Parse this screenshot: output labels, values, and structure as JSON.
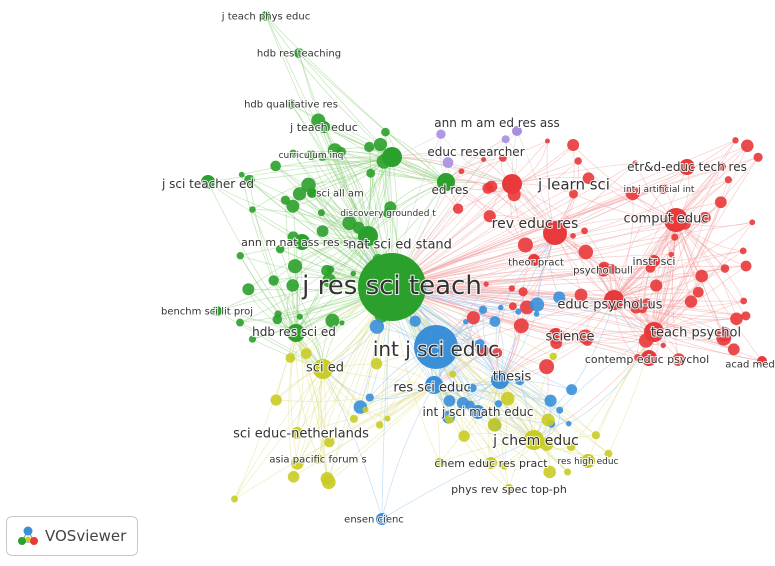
{
  "colors": {
    "green": "#2ca02c",
    "red": "#e8393b",
    "blue": "#3a8fd9",
    "yellow": "#c9cc24",
    "purple": "#a98ee0",
    "green_link": "#8fd17f",
    "red_link": "#f2a3a3",
    "blue_link": "#8fc2ee",
    "yellow_link": "#dede8a"
  },
  "brand": {
    "name": "VOSviewer",
    "icon": "vosviewer-logo-icon"
  },
  "nodes": [
    {
      "label": "j res sci teach",
      "cluster": "green"
    },
    {
      "label": "int j sci educ",
      "cluster": "blue"
    },
    {
      "label": "nat sci ed stand",
      "cluster": "green"
    },
    {
      "label": "j learn sci",
      "cluster": "red"
    },
    {
      "label": "rev educ res",
      "cluster": "red"
    },
    {
      "label": "comput educ",
      "cluster": "red"
    },
    {
      "label": "teach psychol",
      "cluster": "red"
    },
    {
      "label": "educ psychol-us",
      "cluster": "red"
    },
    {
      "label": "science",
      "cluster": "red"
    },
    {
      "label": "j chem educ",
      "cluster": "yellow"
    },
    {
      "label": "res sci educ",
      "cluster": "blue"
    },
    {
      "label": "int j sci math educ",
      "cluster": "blue"
    },
    {
      "label": "thesis",
      "cluster": "blue"
    },
    {
      "label": "sci ed",
      "cluster": "yellow"
    },
    {
      "label": "hdb res sci ed",
      "cluster": "green"
    },
    {
      "label": "ann m nat ass res sc",
      "cluster": "green"
    },
    {
      "label": "j sci teacher ed",
      "cluster": "green"
    },
    {
      "label": "educ researcher",
      "cluster": "green"
    },
    {
      "label": "ed res",
      "cluster": "green"
    },
    {
      "label": "ann m am ed res ass",
      "cluster": "purple"
    },
    {
      "label": "etr&d-educ tech res",
      "cluster": "red"
    },
    {
      "label": "int j artificial int",
      "cluster": "red"
    },
    {
      "label": "instr sci",
      "cluster": "red"
    },
    {
      "label": "psychol bull",
      "cluster": "red"
    },
    {
      "label": "theor pract",
      "cluster": "red"
    },
    {
      "label": "contemp educ psychol",
      "cluster": "red"
    },
    {
      "label": "acad med",
      "cluster": "red"
    },
    {
      "label": "sci educ-netherlands",
      "cluster": "yellow"
    },
    {
      "label": "chem educ res pract",
      "cluster": "yellow"
    },
    {
      "label": "res high educ",
      "cluster": "yellow"
    },
    {
      "label": "asia pacific forum s",
      "cluster": "yellow"
    },
    {
      "label": "phys rev spec top-ph",
      "cluster": "yellow"
    },
    {
      "label": "ensen cienc",
      "cluster": "blue"
    },
    {
      "label": "benchm sci lit proj",
      "cluster": "green"
    },
    {
      "label": "sci all am",
      "cluster": "green"
    },
    {
      "label": "discovery grounded t",
      "cluster": "green"
    },
    {
      "label": "curriculum inq",
      "cluster": "green"
    },
    {
      "label": "j teach educ",
      "cluster": "green"
    },
    {
      "label": "hdb qualitative res",
      "cluster": "green"
    },
    {
      "label": "hdb res teaching",
      "cluster": "green"
    },
    {
      "label": "j teach phys educ",
      "cluster": "green"
    }
  ]
}
